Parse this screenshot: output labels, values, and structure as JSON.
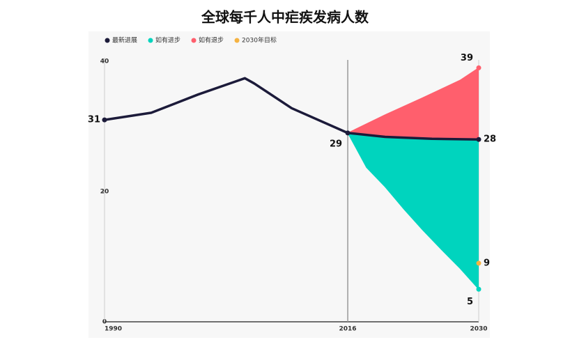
{
  "chart_data": {
    "type": "projection-area",
    "title": "全球每千人中疟疾发病人数",
    "legend": "top-left",
    "xlim": [
      1990,
      2030
    ],
    "xticks": [
      1990,
      2016,
      2030
    ],
    "ylim": [
      0,
      40
    ],
    "yticks": [
      0,
      20,
      40
    ],
    "series": [
      {
        "name": "最新进展",
        "color": "#1c1b3a",
        "x": [
          1990,
          1995,
          2000,
          2004,
          2005,
          2006,
          2010,
          2016,
          2020,
          2025,
          2030
        ],
        "values": [
          31,
          32.1,
          34.9,
          36.9,
          37.4,
          36.6,
          32.8,
          29,
          28.4,
          28.1,
          28
        ]
      },
      {
        "name": "如有进步",
        "color": "#00d4be",
        "x": [
          2016,
          2018,
          2020,
          2022,
          2024,
          2026,
          2028,
          2030
        ],
        "values": [
          29,
          23.7,
          20.7,
          17.3,
          14.1,
          11.1,
          8.2,
          5
        ]
      },
      {
        "name": "如有退步",
        "color": "#ff5f6d",
        "x": [
          2016,
          2020,
          2024,
          2028,
          2030
        ],
        "values": [
          29,
          31.8,
          34.4,
          37.1,
          39
        ]
      },
      {
        "name": "2030年目标",
        "color": "#f5b342",
        "x": [
          2030
        ],
        "values": [
          9
        ]
      }
    ]
  }
}
